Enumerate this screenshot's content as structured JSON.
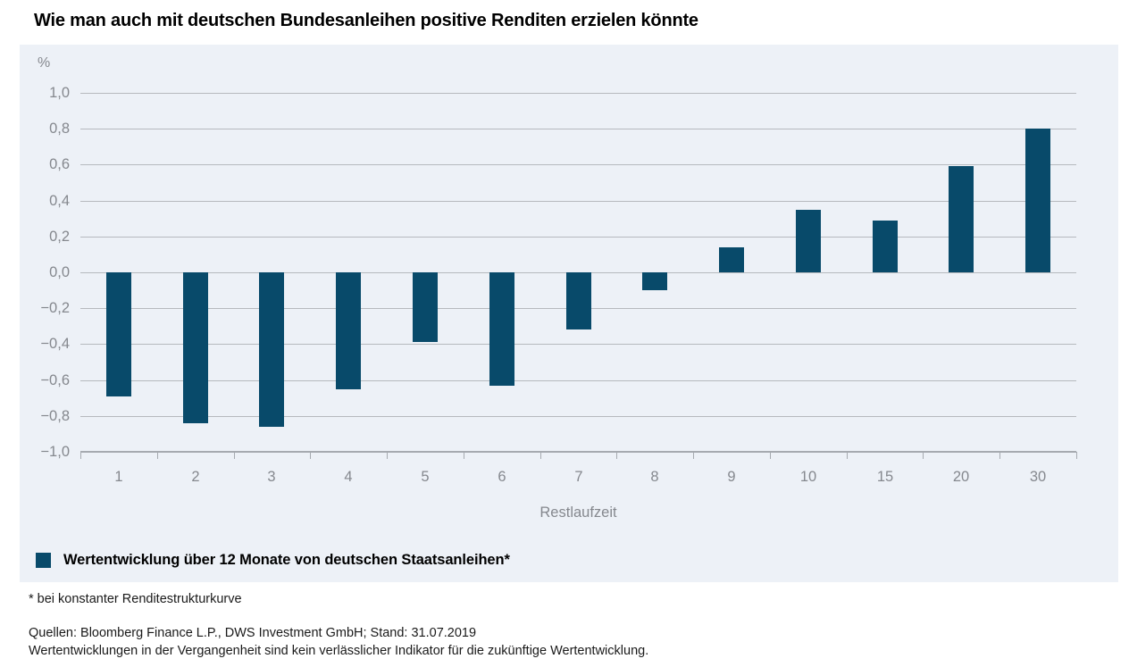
{
  "title": "Wie man auch mit deutschen Bundesanleihen positive Renditen erzielen könnte",
  "chart_data": {
    "type": "bar",
    "unit": "%",
    "categories": [
      "1",
      "2",
      "3",
      "4",
      "5",
      "6",
      "7",
      "8",
      "9",
      "10",
      "15",
      "20",
      "30"
    ],
    "values": [
      -0.69,
      -0.84,
      -0.86,
      -0.65,
      -0.39,
      -0.63,
      -0.32,
      -0.1,
      0.14,
      0.35,
      0.29,
      0.59,
      0.8
    ],
    "xlabel": "Restlaufzeit",
    "ylim": [
      -1.0,
      1.0
    ],
    "ytick_step": 0.2,
    "yticks": [
      {
        "value": 1.0,
        "label": "1,0"
      },
      {
        "value": 0.8,
        "label": "0,8"
      },
      {
        "value": 0.6,
        "label": "0,6"
      },
      {
        "value": 0.4,
        "label": "0,4"
      },
      {
        "value": 0.2,
        "label": "0,2"
      },
      {
        "value": 0.0,
        "label": "0,0"
      },
      {
        "value": -0.2,
        "label": "−0,2"
      },
      {
        "value": -0.4,
        "label": "−0,4"
      },
      {
        "value": -0.6,
        "label": "−0,6"
      },
      {
        "value": -0.8,
        "label": "−0,8"
      },
      {
        "value": -1.0,
        "label": "−1,0"
      }
    ],
    "grid": true,
    "legend": "Wertentwicklung über 12 Monate von deutschen Staatsanleihen*",
    "legend_position": "bottom-left",
    "colors": {
      "bar": "#084A6A",
      "panel_bg": "#EDF1F7",
      "gridline": "#B6B9BE",
      "axis": "#A6AAB0",
      "tick_label": "#85888E",
      "title_text": "#000000",
      "body_text": "#1A1A1A"
    }
  },
  "footnote": "* bei konstanter Renditestrukturkurve",
  "sources": [
    "Quellen: Bloomberg Finance L.P., DWS Investment GmbH; Stand: 31.07.2019",
    "Wertentwicklungen in der Vergangenheit sind kein verlässlicher Indikator für die zukünftige Wertentwicklung."
  ]
}
